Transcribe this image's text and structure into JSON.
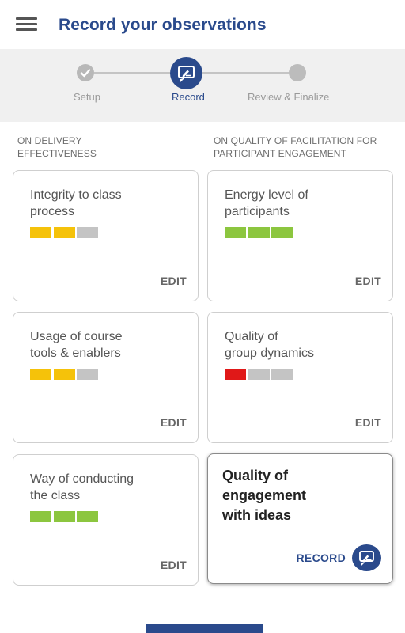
{
  "header": {
    "title": "Record your observations",
    "menu_icon": "hamburger-menu-icon"
  },
  "stepper": {
    "steps": [
      {
        "label": "Setup",
        "state": "done",
        "icon": "check-icon"
      },
      {
        "label": "Record",
        "state": "active",
        "icon": "edit-note-icon"
      },
      {
        "label": "Review & Finalize",
        "state": "todo"
      }
    ]
  },
  "sections": [
    {
      "label_line1": "ON DELIVERY",
      "label_line2": "EFFECTIVENESS"
    },
    {
      "label_line1": "ON QUALITY OF FACILITATION FOR",
      "label_line2": "PARTICIPANT ENGAGEMENT"
    }
  ],
  "colors": {
    "primary": "#2a4a8c",
    "rating_yellow": "#f5c20a",
    "rating_green": "#8cc63f",
    "rating_red": "#e01818",
    "rating_empty": "#c4c4c4"
  },
  "cards": [
    {
      "line1": "Integrity to class",
      "line2": "process",
      "rating": 2,
      "rating_color": "yellow",
      "action": "EDIT"
    },
    {
      "line1": "Energy level of",
      "line2": "participants",
      "rating": 3,
      "rating_color": "green",
      "action": "EDIT"
    },
    {
      "line1": "Usage of course",
      "line2": "tools & enablers",
      "rating": 2,
      "rating_color": "yellow",
      "action": "EDIT"
    },
    {
      "line1": "Quality of",
      "line2": "group dynamics",
      "rating": 1,
      "rating_color": "red",
      "action": "EDIT"
    },
    {
      "line1": "Way of conducting",
      "line2": "the class",
      "rating": 3,
      "rating_color": "green",
      "action": "EDIT"
    },
    {
      "line1": "Quality of",
      "line2": "engagement",
      "line3": "with ideas",
      "action": "RECORD",
      "action_icon": "edit-note-icon"
    }
  ]
}
